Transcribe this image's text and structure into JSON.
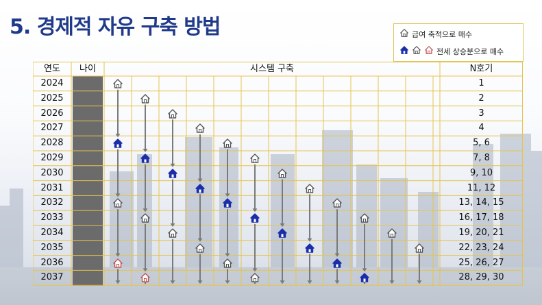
{
  "title": "5. 경제적 자유 구축 방법",
  "legend": {
    "items": [
      {
        "label": "급여 축적으로 매수",
        "icons": [
          "house-outline"
        ]
      },
      {
        "label": "전세 상승분으로 매수",
        "icons": [
          "house-blue",
          "house-outline",
          "house-red"
        ]
      }
    ]
  },
  "headers": {
    "year": "연도",
    "age": "나이",
    "system": "시스템 구축",
    "n": "N호기"
  },
  "rows": [
    {
      "year": "2024",
      "n": "1"
    },
    {
      "year": "2025",
      "n": "2"
    },
    {
      "year": "2026",
      "n": "3"
    },
    {
      "year": "2027",
      "n": "4"
    },
    {
      "year": "2028",
      "n": "5, 6"
    },
    {
      "year": "2029",
      "n": "7, 8"
    },
    {
      "year": "2030",
      "n": "9, 10"
    },
    {
      "year": "2031",
      "n": "11, 12"
    },
    {
      "year": "2032",
      "n": "13, 14, 15"
    },
    {
      "year": "2033",
      "n": "16, 17, 18"
    },
    {
      "year": "2034",
      "n": "19, 20, 21"
    },
    {
      "year": "2035",
      "n": "22, 23, 24"
    },
    {
      "year": "2036",
      "n": "25, 26, 27"
    },
    {
      "year": "2037",
      "n": "28, 29, 30"
    }
  ],
  "houses": [
    [
      0,
      0,
      "outline"
    ],
    [
      1,
      1,
      "outline"
    ],
    [
      2,
      2,
      "outline"
    ],
    [
      3,
      3,
      "outline"
    ],
    [
      4,
      0,
      "blue"
    ],
    [
      4,
      4,
      "outline"
    ],
    [
      5,
      1,
      "blue"
    ],
    [
      5,
      5,
      "outline"
    ],
    [
      6,
      2,
      "blue"
    ],
    [
      6,
      6,
      "outline"
    ],
    [
      7,
      3,
      "blue"
    ],
    [
      7,
      7,
      "outline"
    ],
    [
      8,
      0,
      "outline"
    ],
    [
      8,
      4,
      "blue"
    ],
    [
      8,
      8,
      "outline"
    ],
    [
      9,
      1,
      "outline"
    ],
    [
      9,
      5,
      "blue"
    ],
    [
      9,
      9,
      "outline"
    ],
    [
      10,
      2,
      "outline"
    ],
    [
      10,
      6,
      "blue"
    ],
    [
      10,
      10,
      "outline"
    ],
    [
      11,
      3,
      "outline"
    ],
    [
      11,
      7,
      "blue"
    ],
    [
      11,
      11,
      "outline"
    ],
    [
      12,
      0,
      "red"
    ],
    [
      12,
      4,
      "outline"
    ],
    [
      12,
      8,
      "blue"
    ],
    [
      13,
      1,
      "red"
    ],
    [
      13,
      5,
      "outline"
    ],
    [
      13,
      9,
      "blue"
    ]
  ],
  "colors": {
    "accent": "#1f3a8a",
    "grid": "#e6c34d",
    "blue_house": "#1b2ea8",
    "red_house": "#c0504d",
    "age_bar": "#6b6b6b"
  }
}
